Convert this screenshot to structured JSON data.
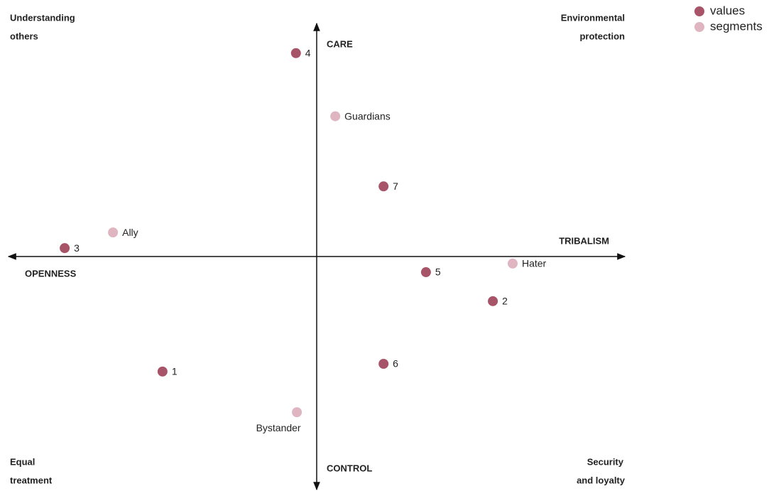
{
  "chart_data": {
    "type": "scatter",
    "xlim": [
      -10,
      10
    ],
    "ylim": [
      -10,
      10
    ],
    "axis_labels": {
      "top": "CARE",
      "bottom": "CONTROL",
      "left": "OPENNESS",
      "right": "TRIBALISM"
    },
    "quadrant_labels": {
      "top_left": [
        "Understanding",
        "others"
      ],
      "top_right": [
        "Environmental",
        "protection"
      ],
      "bottom_left": [
        "Equal",
        "treatment"
      ],
      "bottom_right": [
        "Security",
        "and loyalty"
      ]
    },
    "legend": "top-right",
    "series": [
      {
        "name": "values",
        "color": "#a85468",
        "labels": [
          "4",
          "7",
          "3",
          "5",
          "2",
          "6",
          "1"
        ],
        "x": [
          -0.67,
          2.16,
          -8.14,
          3.53,
          5.69,
          2.16,
          -4.98
        ],
        "y": [
          8.7,
          3.0,
          0.36,
          -0.67,
          -1.91,
          -4.59,
          -4.92
        ]
      },
      {
        "name": "segments",
        "color": "#dfb5c1",
        "labels": [
          "Guardians",
          "Ally",
          "Hater",
          "Bystander"
        ],
        "x": [
          0.6,
          -6.58,
          6.33,
          -0.64
        ],
        "y": [
          6.0,
          1.03,
          -0.3,
          -6.66
        ]
      }
    ]
  }
}
